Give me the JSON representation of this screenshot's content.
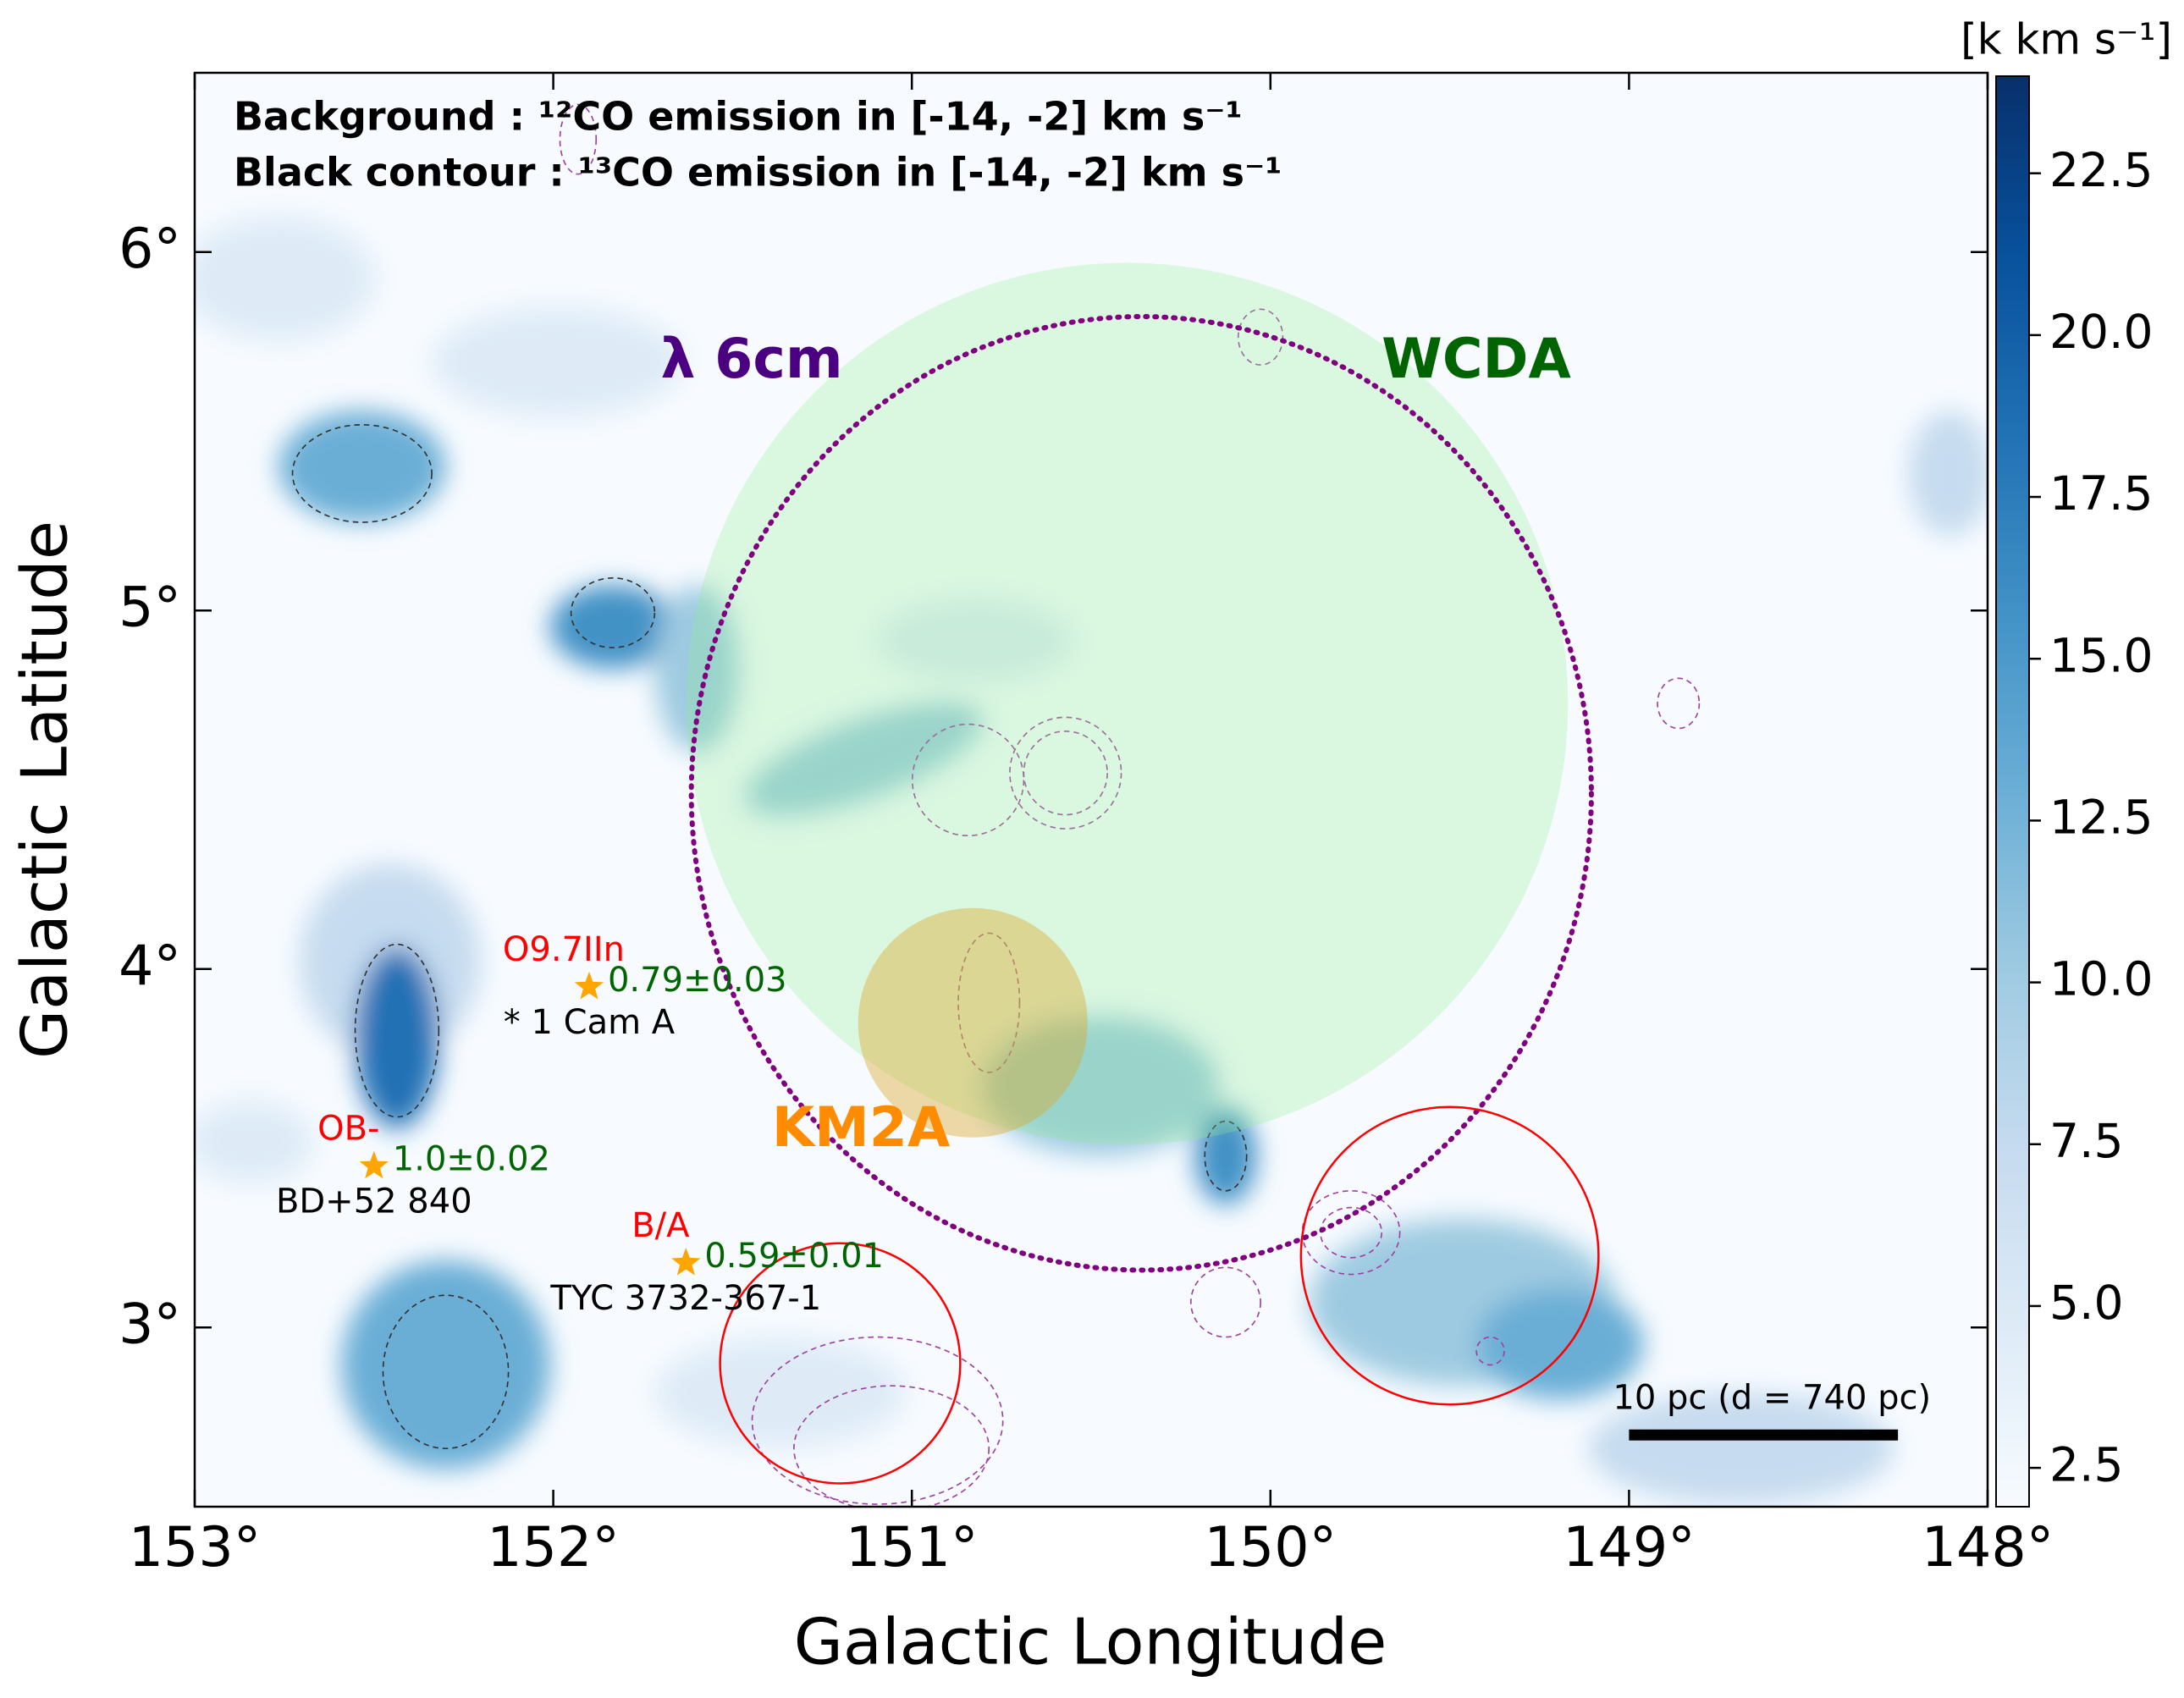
{
  "chart_data": {
    "type": "map",
    "annotations": [
      "Background : ¹²CO emission in [-14, -2] km s⁻¹",
      "Black contour : ¹³CO emission in [-14, -2] km s⁻¹"
    ],
    "xlabel": "Galactic Longitude",
    "ylabel": "Galactic Latitude",
    "xlim": [
      153,
      148
    ],
    "ylim": [
      2.5,
      6.5
    ],
    "xticks": [
      {
        "value": 153,
        "label": "153°"
      },
      {
        "value": 152,
        "label": "152°"
      },
      {
        "value": 151,
        "label": "151°"
      },
      {
        "value": 150,
        "label": "150°"
      },
      {
        "value": 149,
        "label": "149°"
      },
      {
        "value": 148,
        "label": "148°"
      }
    ],
    "yticks": [
      {
        "value": 3,
        "label": "3°"
      },
      {
        "value": 4,
        "label": "4°"
      },
      {
        "value": 5,
        "label": "5°"
      },
      {
        "value": 6,
        "label": "6°"
      }
    ],
    "colorbar": {
      "label": "[k km s⁻¹]",
      "lim": [
        1.9,
        24
      ],
      "ticks": [
        2.5,
        {
          "value": 5,
          "label": "5.0"
        },
        7.5,
        {
          "value": 10,
          "label": "10.0"
        },
        12.5,
        {
          "value": 15,
          "label": "15.0"
        },
        17.5,
        {
          "value": 20,
          "label": "20.0"
        },
        22.5
      ],
      "colormap": [
        "#f7fbff",
        "#deebf7",
        "#c6dbef",
        "#9ecae1",
        "#6baed6",
        "#4292c6",
        "#2171b5",
        "#08519c",
        "#08306b"
      ]
    },
    "sources": [
      {
        "l": 151.9,
        "b": 3.95,
        "spectral_type": "O9.7IIn",
        "name": "*   1 Cam A",
        "fit": "0.79±0.03"
      },
      {
        "l": 152.5,
        "b": 3.45,
        "spectral_type": "OB-",
        "name": "BD+52   840",
        "fit": "1.0±0.02"
      },
      {
        "l": 151.63,
        "b": 3.18,
        "spectral_type": "B/A",
        "name": "TYC 3732-367-1",
        "fit": "0.59±0.01"
      }
    ],
    "source_color": "#ffa500",
    "regions": [
      {
        "name": "WCDA",
        "shape": "disk",
        "l": 150.4,
        "b": 4.74,
        "radius": 1.23,
        "color": "#90ee90"
      },
      {
        "name": "λ 6cm",
        "shape": "dotted-ellipse",
        "l": 150.36,
        "b": 4.49,
        "rx": 1.255,
        "ry": 1.33,
        "color": "#800080"
      },
      {
        "name": "KM2A",
        "shape": "disk",
        "l": 150.83,
        "b": 3.85,
        "radius": 0.32,
        "color": "#daa520"
      },
      {
        "shape": "ring",
        "l": 151.2,
        "b": 2.9,
        "radius": 0.335,
        "color": "#ff0000"
      },
      {
        "shape": "ring",
        "l": 149.5,
        "b": 3.2,
        "radius": 0.415,
        "color": "#ff0000"
      }
    ],
    "scale_bar": {
      "label": "10 pc (d = 740 pc)",
      "l": [
        149.0,
        148.25
      ],
      "b": 2.7
    }
  }
}
